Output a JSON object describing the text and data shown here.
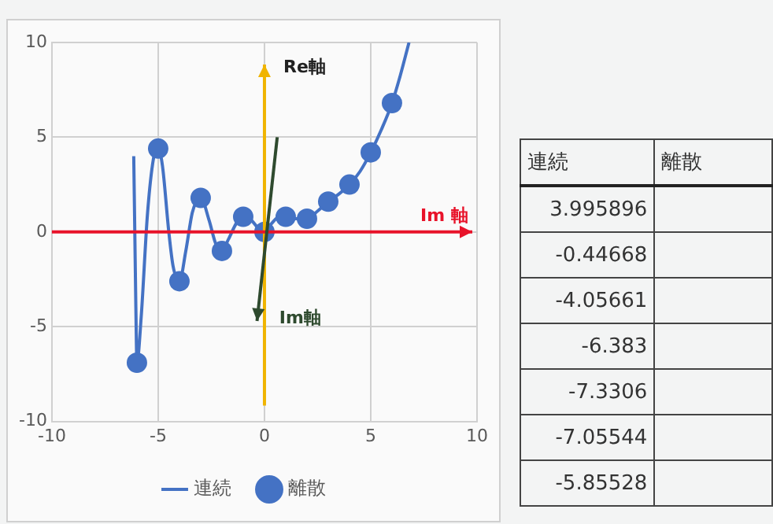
{
  "chart_data": [
    {
      "type": "scatter",
      "series": [
        {
          "name": "連続",
          "type": "line",
          "color": "#4472c4",
          "marker": "none",
          "x": [
            -6.15,
            -6.1,
            -6.05,
            -6,
            -5.8,
            -5.5,
            -5.2,
            -5,
            -4.8,
            -4.5,
            -4.3,
            -4,
            -3.7,
            -3.4,
            -3.2,
            -3,
            -2.6,
            -2.3,
            -2,
            -1.7,
            -1.3,
            -1,
            -0.6,
            -0.3,
            0,
            0.3,
            0.7,
            1,
            1.5,
            2,
            2.5,
            3,
            3.5,
            4,
            4.5,
            5,
            5.5,
            6,
            6.4,
            6.8
          ],
          "values": [
            4,
            0,
            -4,
            -6.9,
            -4.5,
            1,
            4,
            4.4,
            3.5,
            0,
            -1.8,
            -2.6,
            -1,
            1,
            1.6,
            1.8,
            0.6,
            -0.6,
            -1,
            -0.4,
            0.5,
            0.8,
            0.6,
            0.2,
            0,
            0.4,
            0.8,
            0.8,
            0.7,
            0.7,
            1.1,
            1.6,
            2,
            2.5,
            3.2,
            4.2,
            5.4,
            6.8,
            8.3,
            10
          ]
        },
        {
          "name": "離散",
          "type": "scatter",
          "color": "#4472c4",
          "marker": "circle",
          "x": [
            -6,
            -5,
            -4,
            -3,
            -2,
            -1,
            0,
            1,
            2,
            3,
            4,
            5,
            6
          ],
          "values": [
            -6.9,
            4.4,
            -2.6,
            1.8,
            -1,
            0.8,
            0,
            0.8,
            0.7,
            1.6,
            2.5,
            4.2,
            6.8
          ]
        }
      ],
      "xlim": [
        -10,
        10
      ],
      "xticks": [
        -10,
        -5,
        0,
        5,
        10
      ],
      "ylim": [
        -10,
        10
      ],
      "yticks": [
        -10,
        -5,
        0,
        5,
        10
      ],
      "grid": true,
      "legend": "bottom",
      "ref_lines": [
        {
          "axis": "x",
          "value": 0,
          "label": "Re軸",
          "color": "#f0b400"
        },
        {
          "axis": "y",
          "value": 0,
          "label": "Im 軸",
          "color": "#e8132a"
        }
      ],
      "annotations": [
        "Im軸"
      ]
    },
    {
      "type": "other",
      "annotations": [
        "連続",
        "離散",
        "3.995896",
        "-0.44668",
        "-4.05661",
        "-6.383",
        "-7.3306",
        "-7.05544",
        "-5.85528"
      ]
    }
  ]
}
